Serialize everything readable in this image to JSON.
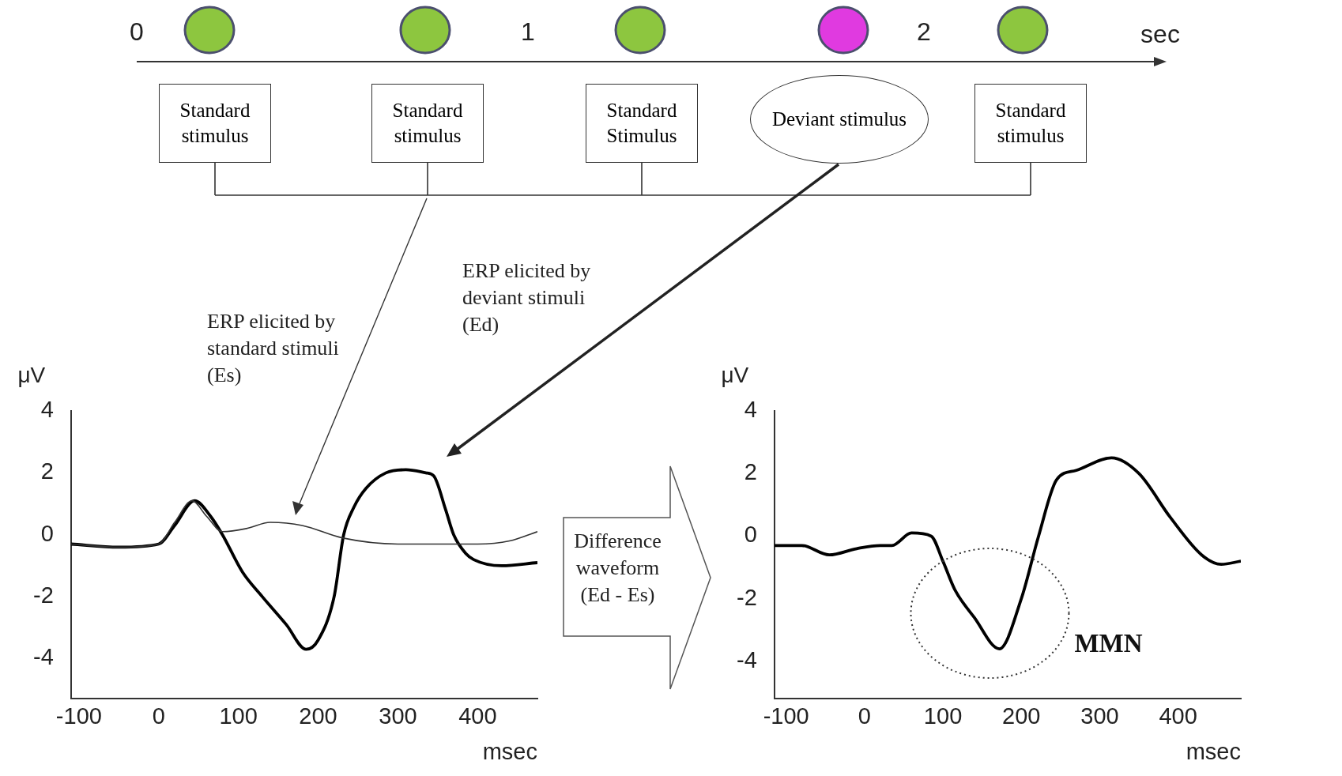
{
  "chart_data": [
    {
      "type": "other",
      "annotations": [
        "0",
        "1",
        "2",
        "sec",
        "Standard stimulus",
        "Standard stimulus",
        "Standard Stimulus",
        "Deviant stimulus",
        "Standard stimulus"
      ]
    },
    {
      "type": "line",
      "xlim": [
        -110,
        475
      ],
      "xticks": [
        -100,
        0,
        100,
        200,
        300,
        400
      ],
      "ylim": [
        -5.3,
        4
      ],
      "yticks": [
        -4,
        -2,
        0,
        2,
        4
      ],
      "xlabel": "msec",
      "ylabel": "μV",
      "series": [
        {
          "color": "#333333",
          "x": [
            -110,
            -50,
            0,
            20,
            42,
            60,
            80,
            110,
            140,
            180,
            230,
            300,
            350,
            400,
            440,
            475
          ],
          "values": [
            -0.3,
            -0.4,
            -0.3,
            0.4,
            1.1,
            0.6,
            0.1,
            0.2,
            0.4,
            0.3,
            -0.1,
            -0.3,
            -0.3,
            -0.3,
            -0.2,
            0.1
          ]
        },
        {
          "color": "#000000",
          "x": [
            -110,
            -50,
            0,
            20,
            45,
            65,
            80,
            105,
            130,
            160,
            185,
            200,
            220,
            232,
            245,
            260,
            285,
            310,
            335,
            345,
            360,
            370,
            385,
            395,
            430,
            475
          ],
          "values": [
            -0.3,
            -0.4,
            -0.3,
            0.3,
            1.1,
            0.6,
            0,
            -1.2,
            -2,
            -2.9,
            -3.7,
            -3.4,
            -2,
            0,
            0.9,
            1.5,
            2,
            2.1,
            2,
            1.9,
            0.8,
            0,
            -0.6,
            -0.8,
            -1,
            -0.9
          ]
        }
      ],
      "annotations": [
        "ERP elicited by standard stimuli (Es)",
        "ERP elicited by deviant stimuli (Ed)"
      ]
    },
    {
      "type": "line",
      "xlim": [
        -115,
        480
      ],
      "xticks": [
        -100,
        0,
        100,
        200,
        300,
        400
      ],
      "ylim": [
        -5.2,
        4
      ],
      "yticks": [
        -4,
        -2,
        0,
        2,
        4
      ],
      "xlabel": "msec",
      "ylabel": "μV",
      "series": [
        {
          "color": "#000000",
          "x": [
            -115,
            -80,
            -45,
            -10,
            20,
            35,
            60,
            85,
            100,
            115,
            140,
            172,
            200,
            222,
            245,
            270,
            315,
            350,
            390,
            430,
            455,
            480
          ],
          "values": [
            -0.3,
            -0.3,
            -0.6,
            -0.4,
            -0.3,
            -0.3,
            0.1,
            0,
            -0.8,
            -1.7,
            -2.6,
            -3.6,
            -2,
            0,
            1.8,
            2.1,
            2.5,
            2,
            0.6,
            -0.6,
            -0.9,
            -0.8
          ]
        }
      ],
      "annotations": [
        "Difference waveform (Ed - Es)",
        {
          "text": "MMN",
          "x": 172,
          "y": -3.6
        }
      ]
    }
  ]
}
